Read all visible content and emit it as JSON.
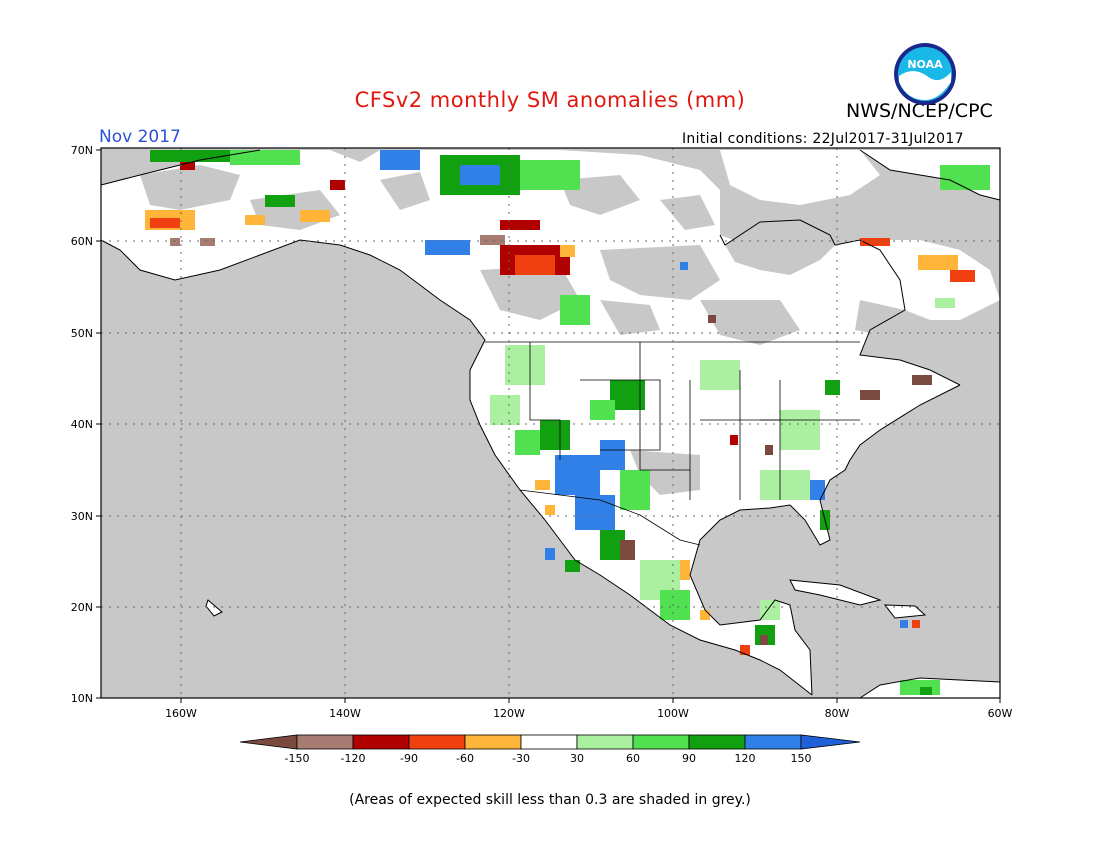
{
  "header": {
    "title": "CFSv2 monthly SM anomalies (mm)",
    "org": "NWS/NCEP/CPC",
    "month": "Nov 2017",
    "initial_conditions": "Initial conditions: 22Jul2017-31Jul2017"
  },
  "logo": {
    "text": "NOAA",
    "icon": "noaa-logo-icon"
  },
  "map": {
    "lat_labels": [
      "70N",
      "60N",
      "50N",
      "40N",
      "30N",
      "20N",
      "10N"
    ],
    "lon_labels": [
      "160W",
      "140W",
      "120W",
      "100W",
      "80W",
      "60W"
    ],
    "grid": true,
    "ocean_color": "#c8c8c8",
    "land_color": "#ffffff"
  },
  "colorbar": {
    "ticks": [
      "-150",
      "-120",
      "-90",
      "-60",
      "-30",
      "30",
      "60",
      "90",
      "120",
      "150"
    ],
    "colors": [
      "#7b4a3e",
      "#a67c72",
      "#b00000",
      "#f04010",
      "#ffb43a",
      "#ffffff",
      "#aaf0a0",
      "#50e050",
      "#10a010",
      "#3080e8",
      "#2060d8"
    ]
  },
  "footnote": "(Areas of expected skill less than 0.3 are shaded in grey.)"
}
